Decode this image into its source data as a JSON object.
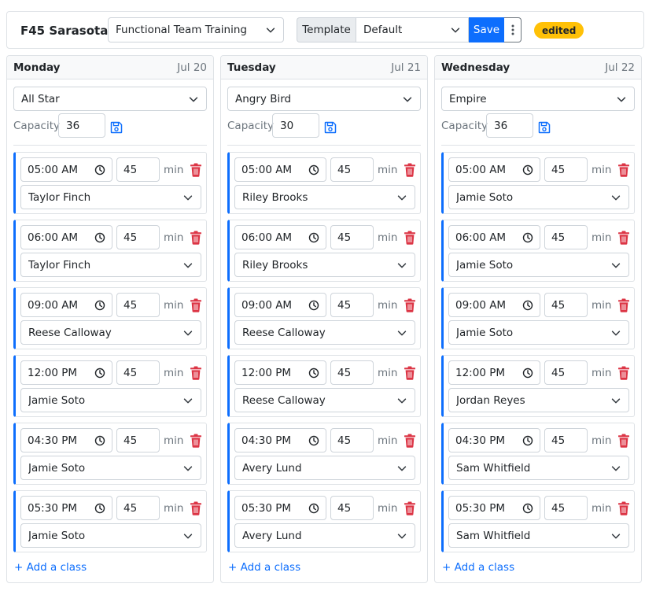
{
  "header": {
    "location": "F45 Sarasota",
    "program": "Functional Team Training",
    "template_label": "Template",
    "template_value": "Default",
    "save_label": "Save",
    "status_badge": "edited"
  },
  "labels": {
    "capacity": "Capacity",
    "min": "min",
    "add_class": "+ Add a class"
  },
  "colors": {
    "primary": "#0d6efd",
    "danger": "#dc3545",
    "warning": "#ffc107",
    "muted": "#6c757d"
  },
  "icons": {
    "dropdown": "chevron-down-icon",
    "time": "clock-icon",
    "save_capacity": "save-icon",
    "delete": "trash-icon",
    "more": "kebab-icon"
  },
  "days": [
    {
      "name": "Monday",
      "date": "Jul 20",
      "series": "All Star",
      "capacity": "36",
      "slots": [
        {
          "time": "05:00 AM",
          "duration": "45",
          "coach": "Taylor Finch"
        },
        {
          "time": "06:00 AM",
          "duration": "45",
          "coach": "Taylor Finch"
        },
        {
          "time": "09:00 AM",
          "duration": "45",
          "coach": "Reese Calloway"
        },
        {
          "time": "12:00 PM",
          "duration": "45",
          "coach": "Jamie Soto"
        },
        {
          "time": "04:30 PM",
          "duration": "45",
          "coach": "Jamie Soto"
        },
        {
          "time": "05:30 PM",
          "duration": "45",
          "coach": "Jamie Soto"
        }
      ]
    },
    {
      "name": "Tuesday",
      "date": "Jul 21",
      "series": "Angry Bird",
      "capacity": "30",
      "slots": [
        {
          "time": "05:00 AM",
          "duration": "45",
          "coach": "Riley Brooks"
        },
        {
          "time": "06:00 AM",
          "duration": "45",
          "coach": "Riley Brooks"
        },
        {
          "time": "09:00 AM",
          "duration": "45",
          "coach": "Reese Calloway"
        },
        {
          "time": "12:00 PM",
          "duration": "45",
          "coach": "Reese Calloway"
        },
        {
          "time": "04:30 PM",
          "duration": "45",
          "coach": "Avery Lund"
        },
        {
          "time": "05:30 PM",
          "duration": "45",
          "coach": "Avery Lund"
        }
      ]
    },
    {
      "name": "Wednesday",
      "date": "Jul 22",
      "series": "Empire",
      "capacity": "36",
      "slots": [
        {
          "time": "05:00 AM",
          "duration": "45",
          "coach": "Jamie Soto"
        },
        {
          "time": "06:00 AM",
          "duration": "45",
          "coach": "Jamie Soto"
        },
        {
          "time": "09:00 AM",
          "duration": "45",
          "coach": "Jamie Soto"
        },
        {
          "time": "12:00 PM",
          "duration": "45",
          "coach": "Jordan Reyes"
        },
        {
          "time": "04:30 PM",
          "duration": "45",
          "coach": "Sam Whitfield"
        },
        {
          "time": "05:30 PM",
          "duration": "45",
          "coach": "Sam Whitfield"
        }
      ]
    }
  ]
}
